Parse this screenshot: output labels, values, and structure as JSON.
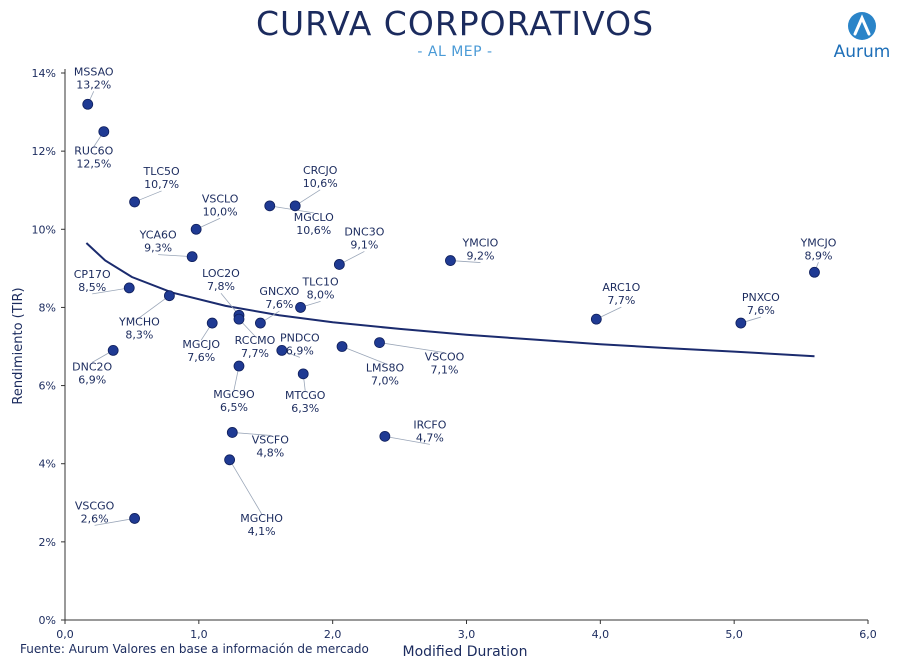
{
  "header": {
    "title": "CURVA CORPORATIVOS",
    "subtitle": "- AL MEP -",
    "brand": "Aurum",
    "source": "Fuente: Aurum Valores en base a información de mercado"
  },
  "colors": {
    "title": "#1b2b5e",
    "subtitle": "#4a9ad6",
    "point": "#1f3a93",
    "curve": "#1b2b6e",
    "brand": "#1e6fb8"
  },
  "chart_data": {
    "type": "scatter",
    "title": "CURVA CORPORATIVOS",
    "subtitle": "- AL MEP -",
    "xlabel": "Modified Duration",
    "ylabel": "Rendimiento (TIR)",
    "xlim": [
      0,
      6
    ],
    "ylim": [
      0,
      14
    ],
    "xticks": [
      "0,0",
      "1,0",
      "2,0",
      "3,0",
      "4,0",
      "5,0",
      "6,0"
    ],
    "yticks": [
      "0%",
      "2%",
      "4%",
      "6%",
      "8%",
      "10%",
      "12%",
      "14%"
    ],
    "grid": false,
    "trendline": "logarithmic",
    "trend_points": [
      [
        0.16,
        9.65
      ],
      [
        0.3,
        9.2
      ],
      [
        0.5,
        8.78
      ],
      [
        0.8,
        8.38
      ],
      [
        1.2,
        8.04
      ],
      [
        1.6,
        7.8
      ],
      [
        2.0,
        7.62
      ],
      [
        2.5,
        7.45
      ],
      [
        3.0,
        7.3
      ],
      [
        3.5,
        7.18
      ],
      [
        4.0,
        7.06
      ],
      [
        4.5,
        6.96
      ],
      [
        5.0,
        6.87
      ],
      [
        5.6,
        6.75
      ]
    ],
    "points": [
      {
        "name": "MSSAO",
        "label": "13,2%",
        "x": 0.17,
        "y": 13.2
      },
      {
        "name": "RUC6O",
        "label": "12,5%",
        "x": 0.29,
        "y": 12.5
      },
      {
        "name": "TLC5O",
        "label": "10,7%",
        "x": 0.52,
        "y": 10.7
      },
      {
        "name": "VSCLO",
        "label": "10,0%",
        "x": 0.98,
        "y": 10.0
      },
      {
        "name": "YCA6O",
        "label": "9,3%",
        "x": 0.95,
        "y": 9.3
      },
      {
        "name": "CP17O",
        "label": "8,5%",
        "x": 0.48,
        "y": 8.5
      },
      {
        "name": "YMCHO",
        "label": "8,3%",
        "x": 0.78,
        "y": 8.3
      },
      {
        "name": "DNC2O",
        "label": "6,9%",
        "x": 0.36,
        "y": 6.9
      },
      {
        "name": "VSCGO",
        "label": "2,6%",
        "x": 0.52,
        "y": 2.6
      },
      {
        "name": "CRCJO",
        "label": "10,6%",
        "x": 1.72,
        "y": 10.6
      },
      {
        "name": "MGCLO",
        "label": "10,6%",
        "x": 1.53,
        "y": 10.6
      },
      {
        "name": "DNC3O",
        "label": "9,1%",
        "x": 2.05,
        "y": 9.1
      },
      {
        "name": "LOC2O",
        "label": "7,8%",
        "x": 1.3,
        "y": 7.8
      },
      {
        "name": "GNCXO",
        "label": "7,6%",
        "x": 1.46,
        "y": 7.6
      },
      {
        "name": "TLC1O",
        "label": "8,0%",
        "x": 1.76,
        "y": 8.0
      },
      {
        "name": "MGCJO",
        "label": "7,6%",
        "x": 1.1,
        "y": 7.6
      },
      {
        "name": "RCCMO",
        "label": "7,7%",
        "x": 1.3,
        "y": 7.7
      },
      {
        "name": "PNDCO",
        "label": "6,9%",
        "x": 1.62,
        "y": 6.9
      },
      {
        "name": "LMS8O",
        "label": "7,0%",
        "x": 2.07,
        "y": 7.0
      },
      {
        "name": "VSCOO",
        "label": "7,1%",
        "x": 2.35,
        "y": 7.1
      },
      {
        "name": "MGC9O",
        "label": "6,5%",
        "x": 1.3,
        "y": 6.5
      },
      {
        "name": "MTCGO",
        "label": "6,3%",
        "x": 1.78,
        "y": 6.3
      },
      {
        "name": "VSCFO",
        "label": "4,8%",
        "x": 1.25,
        "y": 4.8
      },
      {
        "name": "MGCHO",
        "label": "4,1%",
        "x": 1.23,
        "y": 4.1
      },
      {
        "name": "IRCFO",
        "label": "4,7%",
        "x": 2.39,
        "y": 4.7
      },
      {
        "name": "YMCIO",
        "label": "9,2%",
        "x": 2.88,
        "y": 9.2
      },
      {
        "name": "ARC1O",
        "label": "7,7%",
        "x": 3.97,
        "y": 7.7
      },
      {
        "name": "PNXCO",
        "label": "7,6%",
        "x": 5.05,
        "y": 7.6
      },
      {
        "name": "YMCJO",
        "label": "8,9%",
        "x": 5.6,
        "y": 8.9
      }
    ]
  }
}
